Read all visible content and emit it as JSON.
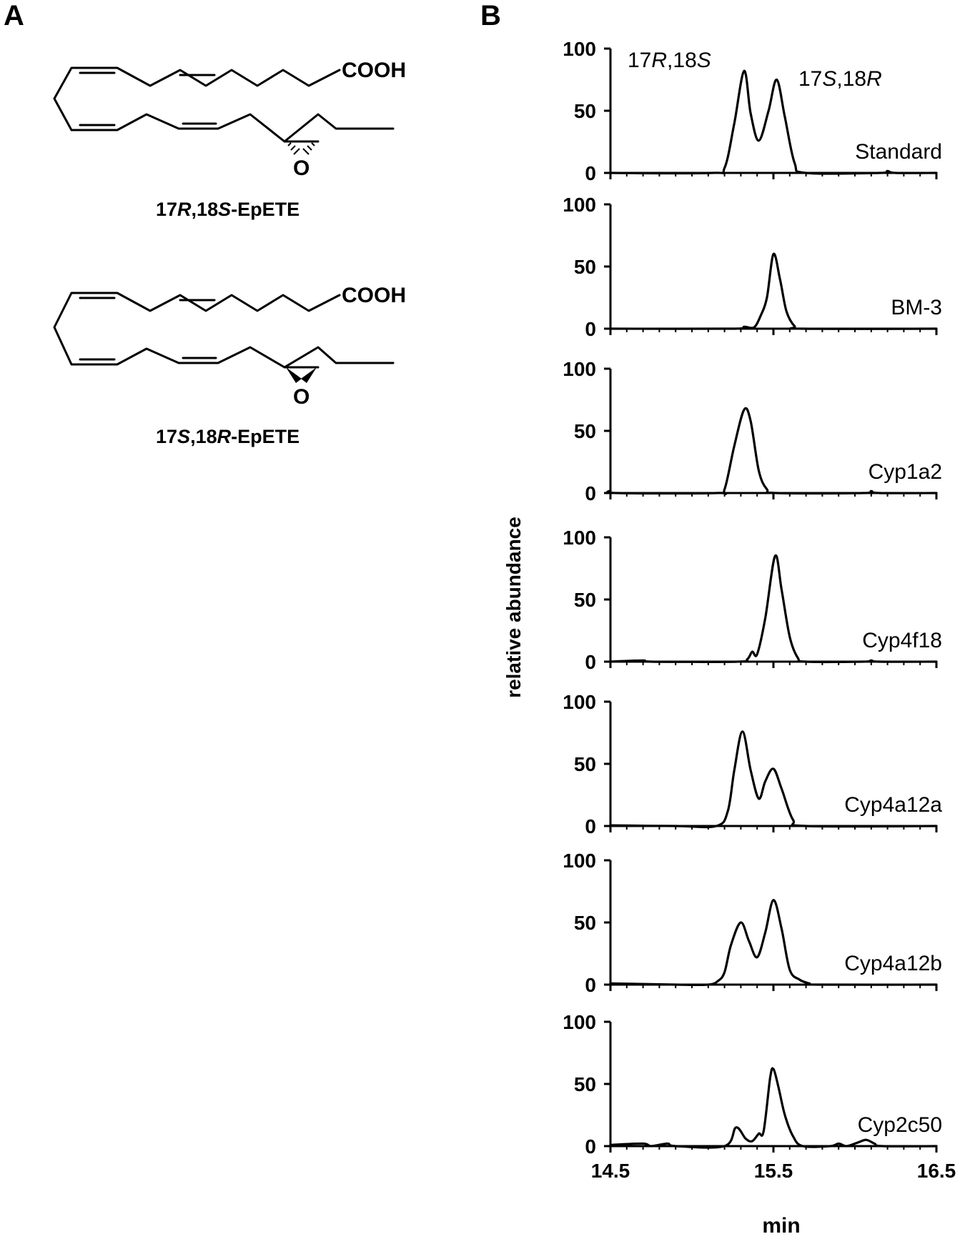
{
  "panels": {
    "a_label": "A",
    "b_label": "B"
  },
  "structures": [
    {
      "name_parts": [
        "17",
        "R",
        ",18",
        "S",
        "-EpETE"
      ],
      "acid_label": "COOH",
      "oxygen_label": "O"
    },
    {
      "name_parts": [
        "17",
        "S",
        ",18",
        "R",
        "-EpETE"
      ],
      "acid_label": "COOH",
      "oxygen_label": "O"
    }
  ],
  "peak_labels": [
    {
      "parts": [
        "17",
        "R",
        ",18",
        "S"
      ]
    },
    {
      "parts": [
        "17",
        "S",
        ",18",
        "R"
      ]
    }
  ],
  "chart_data": {
    "type": "line",
    "xlabel": "min",
    "ylabel": "relative abundance",
    "xlim": [
      14.5,
      16.5
    ],
    "ylim": [
      0,
      100
    ],
    "xticks": [
      "14.5",
      "15.5",
      "16.5"
    ],
    "yticks": [
      "0",
      "50",
      "100"
    ],
    "series": [
      {
        "name": "Standard",
        "points": [
          [
            14.5,
            0
          ],
          [
            15.12,
            0
          ],
          [
            15.2,
            4
          ],
          [
            15.26,
            40
          ],
          [
            15.32,
            82
          ],
          [
            15.36,
            48
          ],
          [
            15.41,
            26
          ],
          [
            15.47,
            50
          ],
          [
            15.52,
            75
          ],
          [
            15.57,
            45
          ],
          [
            15.63,
            8
          ],
          [
            15.7,
            0
          ],
          [
            16.15,
            0
          ],
          [
            16.2,
            1.5
          ],
          [
            16.25,
            0
          ],
          [
            16.5,
            0
          ]
        ]
      },
      {
        "name": "BM-3",
        "points": [
          [
            14.5,
            0
          ],
          [
            15.25,
            0
          ],
          [
            15.32,
            1.5
          ],
          [
            15.38,
            1
          ],
          [
            15.42,
            10
          ],
          [
            15.46,
            25
          ],
          [
            15.5,
            60
          ],
          [
            15.54,
            40
          ],
          [
            15.58,
            14
          ],
          [
            15.63,
            2
          ],
          [
            15.68,
            0
          ],
          [
            16.5,
            0
          ]
        ]
      },
      {
        "name": "Cyp1a2",
        "points": [
          [
            14.5,
            2
          ],
          [
            14.54,
            0
          ],
          [
            15.15,
            0
          ],
          [
            15.2,
            3
          ],
          [
            15.26,
            38
          ],
          [
            15.32,
            67
          ],
          [
            15.36,
            58
          ],
          [
            15.41,
            18
          ],
          [
            15.46,
            3
          ],
          [
            15.52,
            0
          ],
          [
            16.05,
            0
          ],
          [
            16.1,
            1.5
          ],
          [
            16.15,
            0
          ],
          [
            16.5,
            0
          ]
        ]
      },
      {
        "name": "Cyp4f18",
        "points": [
          [
            14.5,
            0
          ],
          [
            14.7,
            1
          ],
          [
            14.75,
            0
          ],
          [
            15.28,
            0
          ],
          [
            15.34,
            2
          ],
          [
            15.37,
            8
          ],
          [
            15.4,
            6
          ],
          [
            15.45,
            35
          ],
          [
            15.51,
            85
          ],
          [
            15.55,
            58
          ],
          [
            15.6,
            20
          ],
          [
            15.65,
            3
          ],
          [
            15.7,
            0
          ],
          [
            16.05,
            0
          ],
          [
            16.1,
            1
          ],
          [
            16.15,
            0
          ],
          [
            16.5,
            0
          ]
        ]
      },
      {
        "name": "Cyp4a12a",
        "points": [
          [
            14.5,
            0.5
          ],
          [
            14.9,
            0
          ],
          [
            15.15,
            0
          ],
          [
            15.22,
            12
          ],
          [
            15.26,
            45
          ],
          [
            15.31,
            76
          ],
          [
            15.36,
            45
          ],
          [
            15.41,
            22
          ],
          [
            15.45,
            36
          ],
          [
            15.5,
            46
          ],
          [
            15.55,
            30
          ],
          [
            15.62,
            5
          ],
          [
            15.7,
            0
          ],
          [
            16.5,
            0
          ]
        ]
      },
      {
        "name": "Cyp4a12b",
        "points": [
          [
            14.5,
            1
          ],
          [
            14.9,
            0
          ],
          [
            15.1,
            0
          ],
          [
            15.16,
            3
          ],
          [
            15.2,
            10
          ],
          [
            15.24,
            32
          ],
          [
            15.3,
            50
          ],
          [
            15.35,
            35
          ],
          [
            15.4,
            22
          ],
          [
            15.45,
            42
          ],
          [
            15.5,
            68
          ],
          [
            15.55,
            45
          ],
          [
            15.6,
            12
          ],
          [
            15.66,
            4
          ],
          [
            15.72,
            1
          ],
          [
            15.78,
            0
          ],
          [
            16.5,
            0
          ]
        ]
      },
      {
        "name": "Cyp2c50",
        "points": [
          [
            14.5,
            1
          ],
          [
            14.7,
            2
          ],
          [
            14.75,
            0
          ],
          [
            14.85,
            2
          ],
          [
            14.9,
            0
          ],
          [
            15.2,
            0
          ],
          [
            15.27,
            15
          ],
          [
            15.33,
            6
          ],
          [
            15.37,
            4
          ],
          [
            15.41,
            10
          ],
          [
            15.44,
            12
          ],
          [
            15.48,
            55
          ],
          [
            15.5,
            62
          ],
          [
            15.53,
            48
          ],
          [
            15.57,
            25
          ],
          [
            15.62,
            8
          ],
          [
            15.68,
            0
          ],
          [
            15.85,
            0
          ],
          [
            15.9,
            2
          ],
          [
            15.95,
            0
          ],
          [
            16.02,
            3
          ],
          [
            16.07,
            5
          ],
          [
            16.12,
            2
          ],
          [
            16.17,
            0
          ],
          [
            16.5,
            0
          ]
        ]
      }
    ]
  }
}
